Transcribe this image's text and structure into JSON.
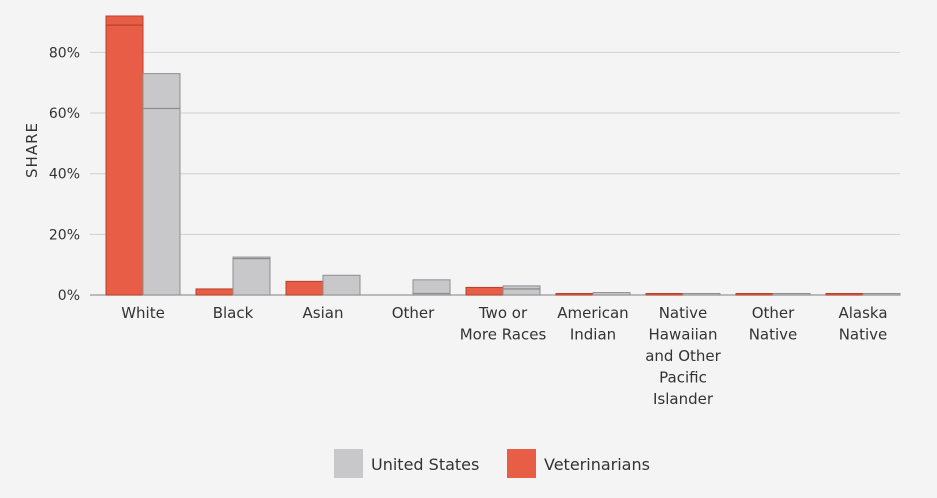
{
  "chart_data": {
    "type": "bar",
    "title": "",
    "xlabel": "",
    "ylabel": "SHARE",
    "ylim": [
      0,
      92
    ],
    "yticks": [
      "0%",
      "20%",
      "40%",
      "60%",
      "80%"
    ],
    "ytick_values": [
      0,
      20,
      40,
      60,
      80
    ],
    "grid": true,
    "legend_position": "bottom",
    "categories": [
      [
        "White"
      ],
      [
        "Black"
      ],
      [
        "Asian"
      ],
      [
        "Other"
      ],
      [
        "Two or",
        "More Races"
      ],
      [
        "American",
        "Indian"
      ],
      [
        "Native",
        "Hawaiian",
        "and Other",
        "Pacific",
        "Islander"
      ],
      [
        "Other",
        "Native"
      ],
      [
        "Alaska",
        "Native"
      ]
    ],
    "series": [
      {
        "name": "Veterinarians",
        "color": "#e85d45",
        "values": [
          92,
          2.0,
          4.5,
          0.0,
          2.5,
          0.2,
          0.1,
          0.05,
          0.05
        ],
        "inner_line": [
          89,
          null,
          null,
          null,
          null,
          null,
          null,
          null,
          null
        ]
      },
      {
        "name": "United States",
        "color": "#c8c8cb",
        "values": [
          73,
          12.5,
          6.5,
          5.0,
          3.0,
          0.8,
          0.5,
          0.4,
          0.3
        ],
        "inner_line": [
          61.5,
          12,
          null,
          0.5,
          2,
          null,
          null,
          null,
          null
        ]
      }
    ],
    "legend": [
      {
        "label": "United States",
        "color": "#c8c8cb"
      },
      {
        "label": "Veterinarians",
        "color": "#e85d45"
      }
    ]
  }
}
